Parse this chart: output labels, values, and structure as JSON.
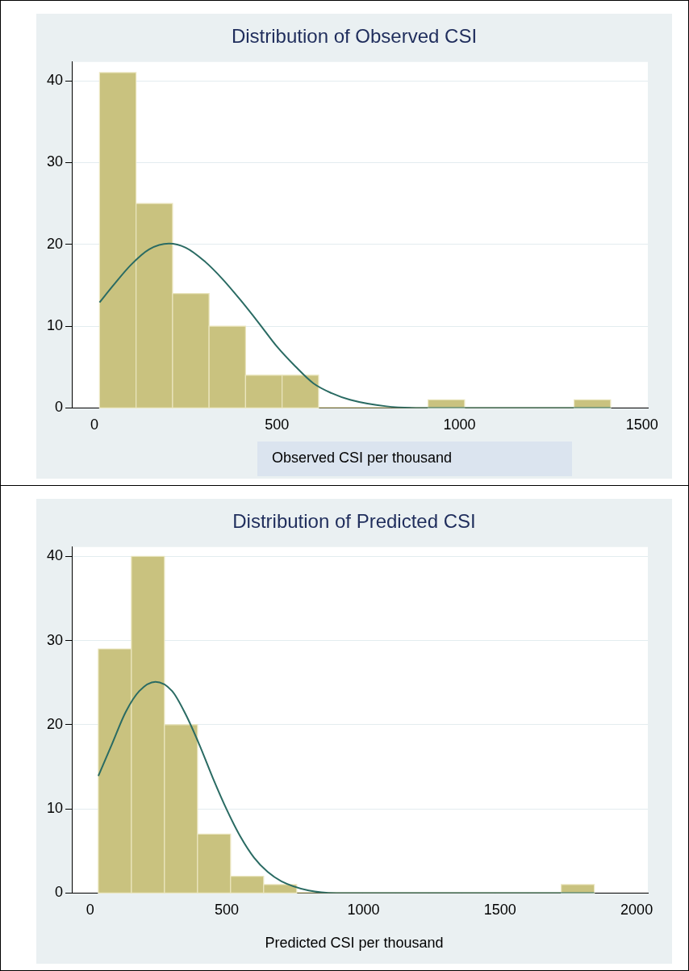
{
  "chart_data": [
    {
      "type": "histogram",
      "title": "Distribution of Observed CSI",
      "xlabel": "Observed CSI per thousand",
      "bins": [
        14,
        114,
        214,
        314,
        414,
        514,
        614,
        714,
        814,
        914,
        1014,
        1114,
        1214,
        1314,
        1414
      ],
      "values": [
        41,
        25,
        14,
        10,
        4,
        4,
        0,
        0,
        0,
        1,
        0,
        0,
        0,
        1
      ],
      "color": "#c9c27f",
      "series": [
        {
          "type": "line",
          "color": "#2a6b63",
          "x": [
            14,
            50,
            100,
            150,
            204,
            250,
            300,
            350,
            400,
            450,
            500,
            550,
            600,
            650,
            700,
            800,
            900,
            1000,
            1200,
            1414
          ],
          "values": [
            12.9,
            14.9,
            17.5,
            19.4,
            20.1,
            19.6,
            18.0,
            15.8,
            13.2,
            10.4,
            7.5,
            5.1,
            3.0,
            1.8,
            1.0,
            0.2,
            0,
            0,
            0,
            0
          ]
        }
      ],
      "xlim": [
        -62,
        1516
      ],
      "xticks": [
        0,
        500,
        1000,
        1500
      ],
      "ylim": [
        0,
        42.3
      ],
      "yticks": [
        0,
        10,
        20,
        30,
        40
      ],
      "grid": "y"
    },
    {
      "type": "histogram",
      "title": "Distribution of Predicted CSI",
      "xlabel": "Predicted CSI per thousand",
      "bins": [
        30,
        151,
        272,
        393,
        514,
        635,
        756,
        877,
        998,
        1119,
        1240,
        1361,
        1482,
        1603,
        1724,
        1845
      ],
      "values": [
        29,
        40,
        20,
        7,
        2,
        1,
        0,
        0,
        0,
        0,
        0,
        0,
        0,
        0,
        1
      ],
      "color": "#c9c27f",
      "series": [
        {
          "type": "line",
          "color": "#2a6b63",
          "x": [
            30,
            80,
            130,
            180,
            239,
            300,
            350,
            400,
            450,
            500,
            550,
            600,
            650,
            700,
            800,
            900,
            1000,
            1500,
            1845
          ],
          "values": [
            13.9,
            17.7,
            21.5,
            24.0,
            25.1,
            24.0,
            21.2,
            17.6,
            13.6,
            9.9,
            6.7,
            4.2,
            2.5,
            1.4,
            0.3,
            0,
            0,
            0,
            0
          ]
        }
      ],
      "xlim": [
        -67,
        2041
      ],
      "xticks": [
        0,
        500,
        1000,
        1500,
        2000
      ],
      "ylim": [
        0,
        41.1
      ],
      "yticks": [
        0,
        10,
        20,
        30,
        40
      ],
      "grid": "y"
    }
  ]
}
